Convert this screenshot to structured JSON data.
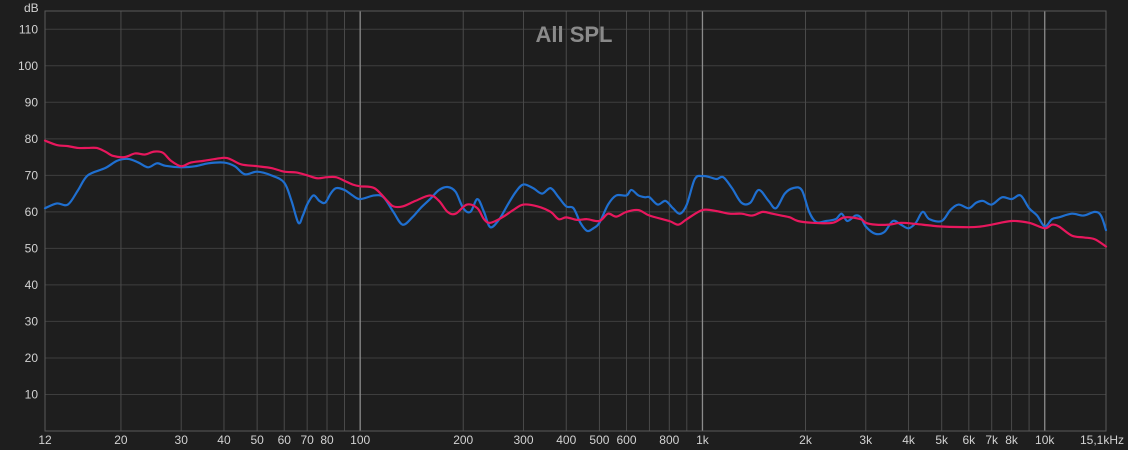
{
  "chart_data": {
    "type": "line",
    "title": "All SPL",
    "y_unit_label": "dB",
    "x_scale": "log",
    "xlim": [
      12,
      15100
    ],
    "ylim": [
      0,
      115
    ],
    "grid": true,
    "y_ticks": [
      10,
      20,
      30,
      40,
      50,
      60,
      70,
      80,
      90,
      100,
      110
    ],
    "x_ticks": [
      {
        "value": 12,
        "label": "12"
      },
      {
        "value": 20,
        "label": "20"
      },
      {
        "value": 30,
        "label": "30"
      },
      {
        "value": 40,
        "label": "40"
      },
      {
        "value": 50,
        "label": "50"
      },
      {
        "value": 60,
        "label": "60"
      },
      {
        "value": 70,
        "label": "70"
      },
      {
        "value": 80,
        "label": "80"
      },
      {
        "value": 100,
        "label": "100"
      },
      {
        "value": 200,
        "label": "200"
      },
      {
        "value": 300,
        "label": "300"
      },
      {
        "value": 400,
        "label": "400"
      },
      {
        "value": 500,
        "label": "500"
      },
      {
        "value": 600,
        "label": "600"
      },
      {
        "value": 800,
        "label": "800"
      },
      {
        "value": 1000,
        "label": "1k"
      },
      {
        "value": 2000,
        "label": "2k"
      },
      {
        "value": 3000,
        "label": "3k"
      },
      {
        "value": 4000,
        "label": "4k"
      },
      {
        "value": 5000,
        "label": "5k"
      },
      {
        "value": 6000,
        "label": "6k"
      },
      {
        "value": 7000,
        "label": "7k"
      },
      {
        "value": 8000,
        "label": "8k"
      },
      {
        "value": 10000,
        "label": "10k"
      },
      {
        "value": 15100,
        "label": "15,1kHz"
      }
    ],
    "series": [
      {
        "color": "#1f6fd0",
        "points": [
          [
            12,
            61
          ],
          [
            13,
            62.3
          ],
          [
            14,
            62
          ],
          [
            15,
            66
          ],
          [
            16,
            70
          ],
          [
            18,
            72
          ],
          [
            19.5,
            74
          ],
          [
            21,
            74.5
          ],
          [
            22.5,
            73.5
          ],
          [
            24,
            72.2
          ],
          [
            25.5,
            73.3
          ],
          [
            27,
            72.6
          ],
          [
            30,
            72.2
          ],
          [
            33,
            72.5
          ],
          [
            36,
            73.3
          ],
          [
            40,
            73.5
          ],
          [
            43,
            72.5
          ],
          [
            46,
            70.3
          ],
          [
            50,
            71
          ],
          [
            55,
            70
          ],
          [
            60,
            68
          ],
          [
            63,
            63
          ],
          [
            66,
            57
          ],
          [
            68,
            59
          ],
          [
            70,
            62
          ],
          [
            73,
            64.5
          ],
          [
            76,
            63
          ],
          [
            79,
            62.5
          ],
          [
            82,
            65
          ],
          [
            85,
            66.5
          ],
          [
            90,
            66
          ],
          [
            95,
            64.5
          ],
          [
            100,
            63.5
          ],
          [
            110,
            64.5
          ],
          [
            117,
            64
          ],
          [
            125,
            60
          ],
          [
            133,
            56.5
          ],
          [
            142,
            58.5
          ],
          [
            150,
            61
          ],
          [
            160,
            63.5
          ],
          [
            170,
            66
          ],
          [
            180,
            66.8
          ],
          [
            190,
            65.5
          ],
          [
            200,
            61
          ],
          [
            210,
            60
          ],
          [
            220,
            63.5
          ],
          [
            230,
            60
          ],
          [
            240,
            55.8
          ],
          [
            255,
            58
          ],
          [
            270,
            62
          ],
          [
            285,
            65.5
          ],
          [
            300,
            67.5
          ],
          [
            320,
            66.5
          ],
          [
            340,
            65
          ],
          [
            360,
            66.5
          ],
          [
            380,
            64
          ],
          [
            400,
            61.5
          ],
          [
            420,
            61
          ],
          [
            440,
            57
          ],
          [
            460,
            54.8
          ],
          [
            480,
            55.5
          ],
          [
            500,
            57
          ],
          [
            530,
            62
          ],
          [
            560,
            64.5
          ],
          [
            600,
            64.5
          ],
          [
            620,
            66
          ],
          [
            650,
            64.5
          ],
          [
            680,
            64
          ],
          [
            700,
            64
          ],
          [
            740,
            62
          ],
          [
            780,
            63
          ],
          [
            820,
            61
          ],
          [
            860,
            59.5
          ],
          [
            900,
            62
          ],
          [
            950,
            69
          ],
          [
            1000,
            69.8
          ],
          [
            1050,
            69.5
          ],
          [
            1100,
            69
          ],
          [
            1150,
            69.5
          ],
          [
            1220,
            66.5
          ],
          [
            1300,
            62.5
          ],
          [
            1380,
            62.5
          ],
          [
            1460,
            66
          ],
          [
            1560,
            63
          ],
          [
            1640,
            61
          ],
          [
            1740,
            65
          ],
          [
            1840,
            66.5
          ],
          [
            1950,
            66
          ],
          [
            2050,
            60
          ],
          [
            2150,
            57.2
          ],
          [
            2300,
            57.5
          ],
          [
            2450,
            58
          ],
          [
            2550,
            59.5
          ],
          [
            2650,
            57.5
          ],
          [
            2800,
            59
          ],
          [
            2900,
            58.5
          ],
          [
            3000,
            56
          ],
          [
            3200,
            54
          ],
          [
            3400,
            54.5
          ],
          [
            3600,
            57.5
          ],
          [
            3800,
            56.5
          ],
          [
            4000,
            55.5
          ],
          [
            4200,
            57
          ],
          [
            4400,
            60
          ],
          [
            4600,
            58
          ],
          [
            5000,
            57.5
          ],
          [
            5300,
            60.5
          ],
          [
            5600,
            62
          ],
          [
            6000,
            61
          ],
          [
            6300,
            62.5
          ],
          [
            6600,
            63
          ],
          [
            7000,
            62
          ],
          [
            7500,
            64
          ],
          [
            8000,
            63.5
          ],
          [
            8500,
            64.5
          ],
          [
            9000,
            61
          ],
          [
            9500,
            59
          ],
          [
            10000,
            56
          ],
          [
            10500,
            58
          ],
          [
            11000,
            58.5
          ],
          [
            12000,
            59.5
          ],
          [
            13000,
            59
          ],
          [
            14000,
            60
          ],
          [
            14600,
            59
          ],
          [
            15100,
            55
          ]
        ]
      },
      {
        "color": "#e8175d",
        "points": [
          [
            12,
            79.5
          ],
          [
            13,
            78.3
          ],
          [
            14,
            78
          ],
          [
            15,
            77.5
          ],
          [
            16,
            77.5
          ],
          [
            17,
            77.5
          ],
          [
            18,
            76.5
          ],
          [
            19,
            75.3
          ],
          [
            20.5,
            75
          ],
          [
            22,
            76
          ],
          [
            23.5,
            75.7
          ],
          [
            25,
            76.5
          ],
          [
            26.5,
            76.2
          ],
          [
            28,
            74
          ],
          [
            30,
            72.5
          ],
          [
            32,
            73.5
          ],
          [
            35,
            74
          ],
          [
            40,
            74.8
          ],
          [
            42,
            74.3
          ],
          [
            45,
            73
          ],
          [
            50,
            72.5
          ],
          [
            55,
            72
          ],
          [
            60,
            71
          ],
          [
            65,
            70.8
          ],
          [
            70,
            70
          ],
          [
            75,
            69.2
          ],
          [
            80,
            69.5
          ],
          [
            85,
            69.5
          ],
          [
            90,
            68.5
          ],
          [
            95,
            67.5
          ],
          [
            100,
            67
          ],
          [
            110,
            66.5
          ],
          [
            120,
            63
          ],
          [
            125,
            61.5
          ],
          [
            133,
            61.5
          ],
          [
            145,
            63
          ],
          [
            160,
            64.5
          ],
          [
            170,
            63
          ],
          [
            180,
            60
          ],
          [
            190,
            59.5
          ],
          [
            205,
            62
          ],
          [
            220,
            61
          ],
          [
            230,
            58
          ],
          [
            240,
            57
          ],
          [
            260,
            58.5
          ],
          [
            280,
            60.5
          ],
          [
            300,
            62
          ],
          [
            330,
            61.5
          ],
          [
            360,
            60
          ],
          [
            380,
            58
          ],
          [
            400,
            58.5
          ],
          [
            430,
            57.8
          ],
          [
            460,
            58
          ],
          [
            500,
            57.5
          ],
          [
            530,
            59.5
          ],
          [
            560,
            58.7
          ],
          [
            600,
            60
          ],
          [
            650,
            60.5
          ],
          [
            700,
            59
          ],
          [
            800,
            57.5
          ],
          [
            850,
            56.5
          ],
          [
            900,
            58
          ],
          [
            1000,
            60.5
          ],
          [
            1100,
            60.2
          ],
          [
            1200,
            59.5
          ],
          [
            1300,
            59.5
          ],
          [
            1400,
            59
          ],
          [
            1500,
            60
          ],
          [
            1600,
            59.5
          ],
          [
            1700,
            59
          ],
          [
            1800,
            58.5
          ],
          [
            1900,
            57.5
          ],
          [
            2100,
            57
          ],
          [
            2400,
            57
          ],
          [
            2600,
            58.5
          ],
          [
            2900,
            58
          ],
          [
            3000,
            57
          ],
          [
            3200,
            56.5
          ],
          [
            3500,
            56.5
          ],
          [
            3800,
            57
          ],
          [
            4200,
            56.7
          ],
          [
            4600,
            56.3
          ],
          [
            5000,
            56
          ],
          [
            6000,
            55.8
          ],
          [
            6500,
            56
          ],
          [
            7000,
            56.5
          ],
          [
            8000,
            57.5
          ],
          [
            9000,
            57
          ],
          [
            10000,
            55.5
          ],
          [
            10500,
            56.5
          ],
          [
            11000,
            56
          ],
          [
            12000,
            53.5
          ],
          [
            13000,
            53
          ],
          [
            14000,
            52.5
          ],
          [
            15100,
            50.5
          ]
        ]
      }
    ]
  }
}
